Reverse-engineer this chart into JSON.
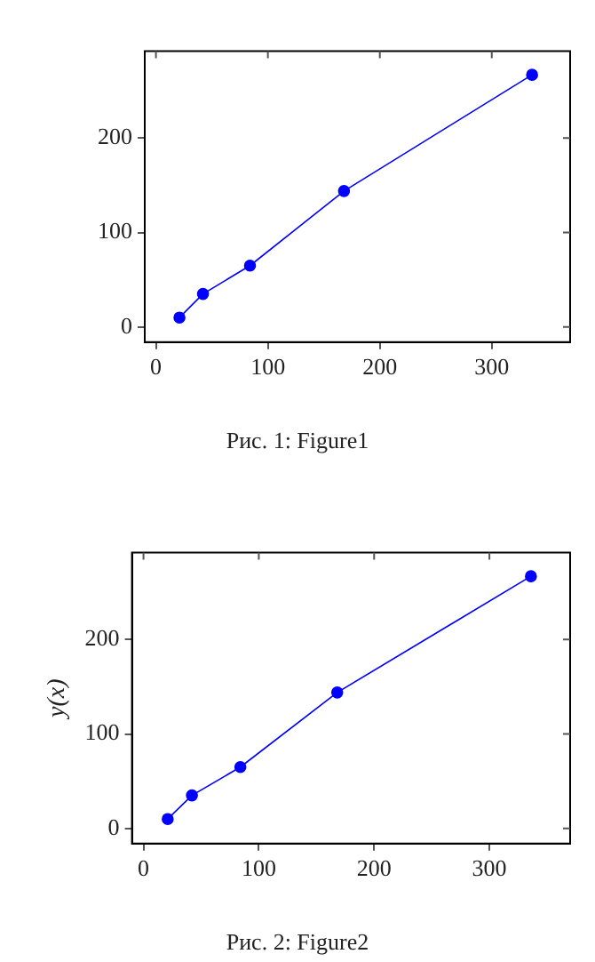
{
  "chart_data": [
    {
      "type": "line",
      "x": [
        21,
        42,
        84,
        168,
        336
      ],
      "series": [
        {
          "color": "#0000ff",
          "values": [
            10,
            35,
            65,
            144,
            267
          ]
        }
      ],
      "xlim": [
        -10,
        370
      ],
      "ylim": [
        -16,
        292
      ],
      "xticks": [
        0,
        100,
        200,
        300
      ],
      "yticks": [
        0,
        100,
        200
      ],
      "marker": "circle",
      "grid": false,
      "annotations": [
        "Рис. 1: Figure1"
      ]
    },
    {
      "type": "line",
      "x": [
        21,
        42,
        84,
        168,
        336
      ],
      "series": [
        {
          "color": "#0000ff",
          "values": [
            10,
            35,
            65,
            144,
            267
          ]
        }
      ],
      "xlim": [
        -10,
        370
      ],
      "ylim": [
        -16,
        292
      ],
      "xticks": [
        0,
        100,
        200,
        300
      ],
      "yticks": [
        0,
        100,
        200
      ],
      "ylabel": "y(x)",
      "marker": "circle",
      "grid": false,
      "annotations": [
        "Рис. 2: Figure2"
      ]
    }
  ]
}
